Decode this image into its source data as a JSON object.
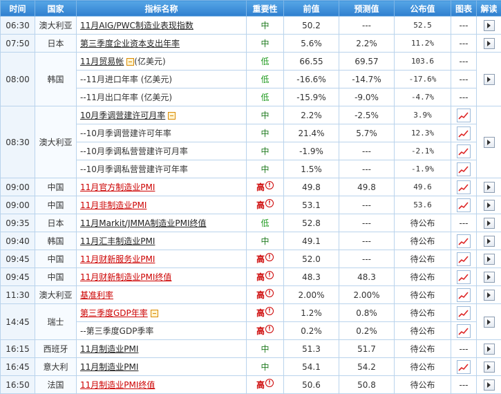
{
  "headers": {
    "time": "时间",
    "country": "国家",
    "indicator": "指标名称",
    "importance": "重要性",
    "previous": "前值",
    "forecast": "预测值",
    "published": "公布值",
    "chart": "图表",
    "interpret": "解读"
  },
  "labels": {
    "dash": "---",
    "excl": "!"
  },
  "groups": [
    {
      "time": "06:30",
      "country": "澳大利亚",
      "interpret": true,
      "rows": [
        {
          "name": "11月AIG/PWC制造业表现指数",
          "style": "link",
          "importance": "中",
          "level": "mid",
          "previous": "50.2",
          "forecast": "---",
          "published": "52.5",
          "chart": false
        }
      ]
    },
    {
      "time": "07:50",
      "country": "日本",
      "interpret": true,
      "rows": [
        {
          "name": "第三季度企业资本支出年率",
          "style": "link",
          "importance": "中",
          "level": "mid",
          "previous": "5.6%",
          "forecast": "2.2%",
          "published": "11.2%",
          "chart": false
        }
      ]
    },
    {
      "time": "08:00",
      "country": "韩国",
      "interpret": true,
      "rows": [
        {
          "name": "11月贸易帐",
          "suffix": "(亿美元)",
          "collapse": true,
          "style": "link",
          "importance": "低",
          "level": "low",
          "previous": "66.55",
          "forecast": "69.57",
          "published": "103.6",
          "chart": false
        },
        {
          "name": "--11月进口年率 (亿美元)",
          "style": "plain",
          "importance": "低",
          "level": "low",
          "previous": "-16.6%",
          "forecast": "-14.7%",
          "published": "-17.6%",
          "chart": false
        },
        {
          "name": "--11月出口年率 (亿美元)",
          "style": "plain",
          "importance": "低",
          "level": "low",
          "previous": "-15.9%",
          "forecast": "-9.0%",
          "published": "-4.7%",
          "chart": false
        }
      ]
    },
    {
      "time": "08:30",
      "country": "澳大利亚",
      "interpret": true,
      "rows": [
        {
          "name": "10月季调营建许可月率",
          "collapse": true,
          "style": "link",
          "importance": "中",
          "level": "mid",
          "previous": "2.2%",
          "forecast": "-2.5%",
          "published": "3.9%",
          "chart": true
        },
        {
          "name": "--10月季调营建许可年率",
          "style": "plain",
          "importance": "中",
          "level": "mid",
          "previous": "21.4%",
          "forecast": "5.7%",
          "published": "12.3%",
          "chart": true
        },
        {
          "name": "--10月季调私营营建许可月率",
          "style": "plain",
          "importance": "中",
          "level": "mid",
          "previous": "-1.9%",
          "forecast": "---",
          "published": "-2.1%",
          "chart": true
        },
        {
          "name": "--10月季调私营营建许可年率",
          "style": "plain",
          "importance": "中",
          "level": "mid",
          "previous": "1.5%",
          "forecast": "---",
          "published": "-1.9%",
          "chart": true
        }
      ]
    },
    {
      "time": "09:00",
      "country": "中国",
      "interpret": true,
      "rows": [
        {
          "name": "11月官方制造业PMI",
          "style": "link-red",
          "importance": "高",
          "level": "high",
          "previous": "49.8",
          "forecast": "49.8",
          "published": "49.6",
          "chart": true
        }
      ]
    },
    {
      "time": "09:00",
      "country": "中国",
      "interpret": true,
      "rows": [
        {
          "name": "11月非制造业PMI",
          "style": "link-red",
          "importance": "高",
          "level": "high",
          "previous": "53.1",
          "forecast": "---",
          "published": "53.6",
          "chart": true
        }
      ]
    },
    {
      "time": "09:35",
      "country": "日本",
      "interpret": true,
      "rows": [
        {
          "name": "11月Markit/JMMA制造业PMI终值",
          "style": "link",
          "importance": "低",
          "level": "low",
          "previous": "52.8",
          "forecast": "---",
          "published": "待公布",
          "chart": false
        }
      ]
    },
    {
      "time": "09:40",
      "country": "韩国",
      "interpret": true,
      "rows": [
        {
          "name": "11月汇丰制造业PMI",
          "style": "link",
          "importance": "中",
          "level": "mid",
          "previous": "49.1",
          "forecast": "---",
          "published": "待公布",
          "chart": true
        }
      ]
    },
    {
      "time": "09:45",
      "country": "中国",
      "interpret": true,
      "rows": [
        {
          "name": "11月财新服务业PMI",
          "style": "link-red",
          "importance": "高",
          "level": "high",
          "previous": "52.0",
          "forecast": "---",
          "published": "待公布",
          "chart": true
        }
      ]
    },
    {
      "time": "09:45",
      "country": "中国",
      "interpret": true,
      "rows": [
        {
          "name": "11月财新制造业PMI终值",
          "style": "link-red",
          "importance": "高",
          "level": "high",
          "previous": "48.3",
          "forecast": "48.3",
          "published": "待公布",
          "chart": true
        }
      ]
    },
    {
      "time": "11:30",
      "country": "澳大利亚",
      "interpret": true,
      "rows": [
        {
          "name": "基准利率",
          "style": "link-red",
          "importance": "高",
          "level": "high",
          "previous": "2.00%",
          "forecast": "2.00%",
          "published": "待公布",
          "chart": true
        }
      ]
    },
    {
      "time": "14:45",
      "country": "瑞士",
      "interpret": true,
      "rows": [
        {
          "name": "第三季度GDP年率",
          "collapse": true,
          "style": "link-red",
          "importance": "高",
          "level": "high",
          "previous": "1.2%",
          "forecast": "0.8%",
          "published": "待公布",
          "chart": true
        },
        {
          "name": "--第三季度GDP季率",
          "style": "plain",
          "importance": "高",
          "level": "high",
          "previous": "0.2%",
          "forecast": "0.2%",
          "published": "待公布",
          "chart": true
        }
      ]
    },
    {
      "time": "16:15",
      "country": "西班牙",
      "interpret": true,
      "rows": [
        {
          "name": "11月制造业PMI",
          "style": "link",
          "importance": "中",
          "level": "mid",
          "previous": "51.3",
          "forecast": "51.7",
          "published": "待公布",
          "chart": false
        }
      ]
    },
    {
      "time": "16:45",
      "country": "意大利",
      "interpret": true,
      "rows": [
        {
          "name": "11月制造业PMI",
          "style": "link",
          "importance": "中",
          "level": "mid",
          "previous": "54.1",
          "forecast": "54.2",
          "published": "待公布",
          "chart": true
        }
      ]
    },
    {
      "time": "16:50",
      "country": "法国",
      "interpret": true,
      "rows": [
        {
          "name": "11月制造业PMI终值",
          "style": "link-red",
          "importance": "高",
          "level": "high",
          "previous": "50.6",
          "forecast": "50.8",
          "published": "待公布",
          "chart": false
        }
      ]
    }
  ]
}
